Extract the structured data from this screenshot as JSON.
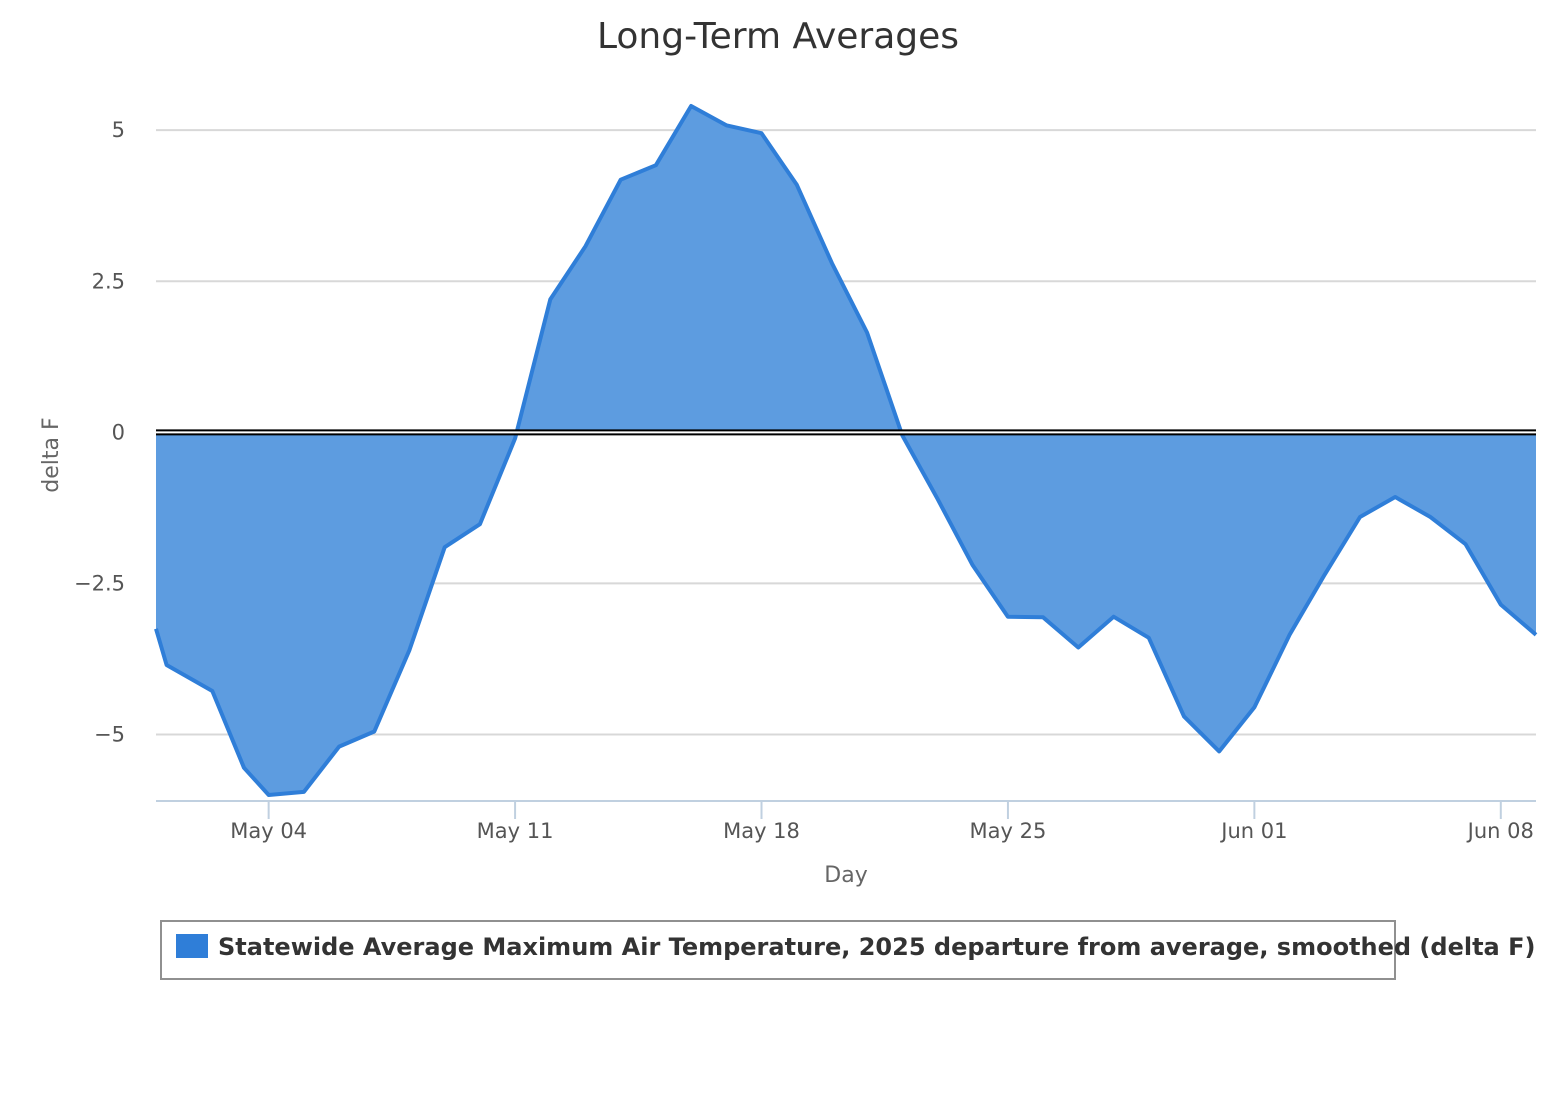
{
  "chart_data": {
    "type": "area",
    "title": "Long-Term Averages",
    "xlabel": "Day",
    "ylabel": "delta F",
    "y_ticks": [
      5,
      2.5,
      0,
      -2.5,
      -5
    ],
    "y_tick_labels": [
      "5",
      "2.5",
      "0",
      "−2.5",
      "−5"
    ],
    "ylim": [
      -6.1,
      5.4
    ],
    "x_ticks": [
      {
        "day": 4,
        "label": "May 04"
      },
      {
        "day": 11,
        "label": "May 11"
      },
      {
        "day": 18,
        "label": "May 18"
      },
      {
        "day": 25,
        "label": "May 25"
      },
      {
        "day": 32,
        "label": "Jun 01"
      },
      {
        "day": 39,
        "label": "Jun 08"
      }
    ],
    "xlim": [
      0.8,
      40.0
    ],
    "grid": true,
    "zero_line": true,
    "legend_position": "bottom",
    "series": [
      {
        "name": "Statewide Average Maximum Air Temperature, 2025 departure from average, smoothed (delta F)",
        "color": "#2f7ed8",
        "fill_color": "#5d9ce0",
        "x": [
          0.8,
          1.1,
          2.4,
          3.3,
          4.0,
          5.0,
          6.0,
          7.0,
          8.0,
          9.0,
          10.0,
          11.0,
          12.0,
          13.0,
          14.0,
          15.0,
          16.0,
          17.0,
          18.0,
          19.0,
          20.0,
          21.0,
          22.0,
          23.0,
          24.0,
          25.0,
          26.0,
          27.0,
          28.0,
          29.0,
          30.0,
          31.0,
          32.0,
          33.0,
          34.0,
          35.0,
          36.0,
          37.0,
          38.0,
          39.0,
          40.0
        ],
        "y": [
          -3.25,
          -3.85,
          -4.28,
          -5.55,
          -6.0,
          -5.95,
          -5.2,
          -4.95,
          -3.6,
          -1.9,
          -1.52,
          -0.1,
          2.2,
          3.08,
          4.18,
          4.42,
          5.4,
          5.08,
          4.95,
          4.1,
          2.8,
          1.65,
          -0.05,
          -1.1,
          -2.2,
          -3.05,
          -3.06,
          -3.56,
          -3.05,
          -3.4,
          -4.7,
          -5.28,
          -4.55,
          -3.35,
          -2.35,
          -1.4,
          -1.07,
          -1.4,
          -1.85,
          -2.85,
          -3.35
        ]
      }
    ]
  }
}
